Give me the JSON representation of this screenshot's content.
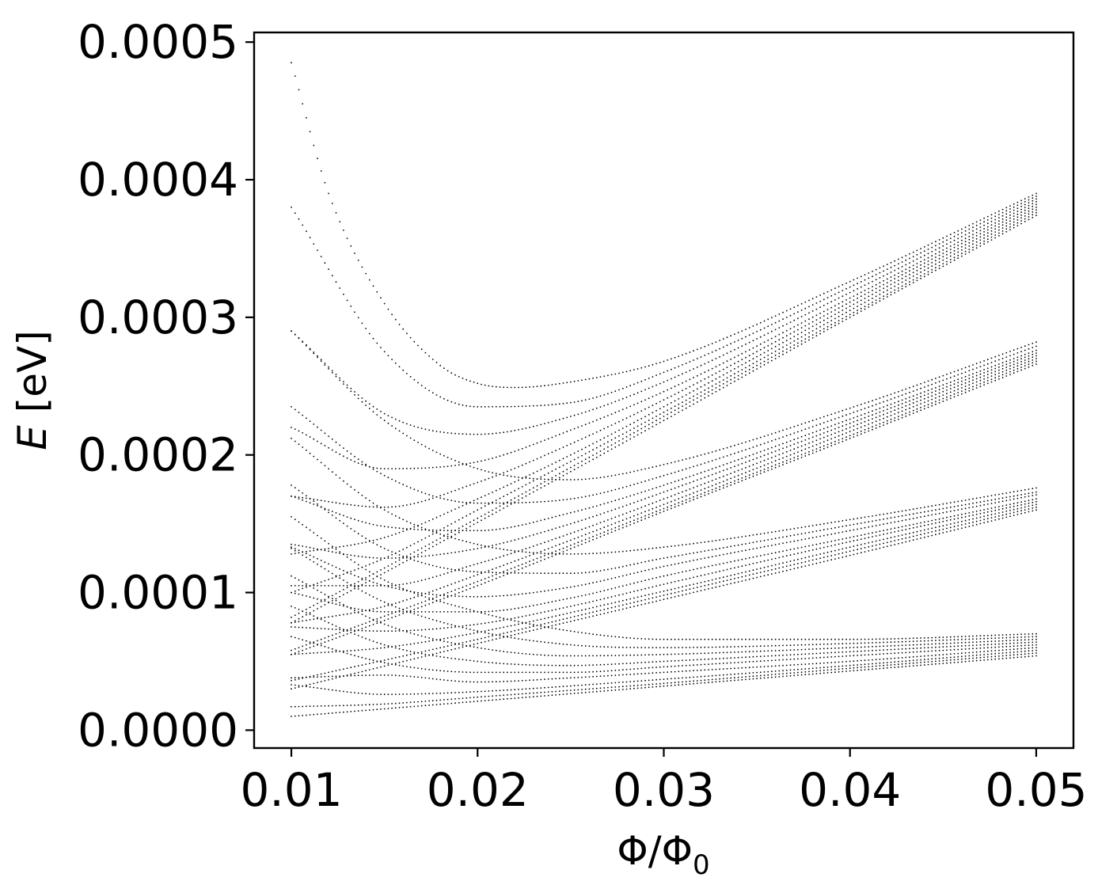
{
  "chart_data": {
    "type": "scatter",
    "marker": "dot",
    "color": "#000000",
    "grid": false,
    "legend": "none",
    "xlabel": "Φ/Φ0",
    "ylabel": "E [eV]",
    "xlim": [
      0.008,
      0.052
    ],
    "ylim": [
      -1.3e-05,
      0.000507
    ],
    "xticks": [
      0.01,
      0.02,
      0.03,
      0.04,
      0.05
    ],
    "xtick_labels": [
      "0.01",
      "0.02",
      "0.03",
      "0.04",
      "0.05"
    ],
    "yticks": [
      0.0,
      0.0001,
      0.0002,
      0.0003,
      0.0004,
      0.0005
    ],
    "ytick_labels": [
      "0.0000",
      "0.0001",
      "0.0002",
      "0.0003",
      "0.0004",
      "0.0005"
    ],
    "x_range_of_data": [
      0.01,
      0.05
    ],
    "series": [
      {
        "x": [
          0.01,
          0.02,
          0.03,
          0.04,
          0.05
        ],
        "y": [
          1e-05,
          2.1e-05,
          3.2e-05,
          4.3e-05,
          5.4e-05
        ]
      },
      {
        "x": [
          0.01,
          0.015,
          0.02,
          0.03,
          0.04,
          0.05
        ],
        "y": [
          1.7e-05,
          1.9e-05,
          2.4e-05,
          3.4e-05,
          4.5e-05,
          5.6e-05
        ]
      },
      {
        "x": [
          0.01,
          0.015,
          0.02,
          0.03,
          0.04,
          0.05
        ],
        "y": [
          3.3e-05,
          2.6e-05,
          2.8e-05,
          3.7e-05,
          4.7e-05,
          5.8e-05
        ]
      },
      {
        "x": [
          0.01,
          0.015,
          0.02,
          0.025,
          0.03,
          0.04,
          0.05
        ],
        "y": [
          3.8e-05,
          4e-05,
          3.5e-05,
          3.8e-05,
          4.2e-05,
          5e-05,
          6e-05
        ]
      },
      {
        "x": [
          0.01,
          0.015,
          0.02,
          0.025,
          0.03,
          0.04,
          0.05
        ],
        "y": [
          6.8e-05,
          4.9e-05,
          4.2e-05,
          4.2e-05,
          4.6e-05,
          5.4e-05,
          6.2e-05
        ]
      },
      {
        "x": [
          0.01,
          0.015,
          0.02,
          0.025,
          0.03,
          0.04,
          0.05
        ],
        "y": [
          9e-05,
          6.2e-05,
          5e-05,
          4.7e-05,
          5e-05,
          5.7e-05,
          6.4e-05
        ]
      },
      {
        "x": [
          0.01,
          0.015,
          0.02,
          0.025,
          0.03,
          0.04,
          0.05
        ],
        "y": [
          0.000112,
          7.7e-05,
          6e-05,
          5.4e-05,
          5.5e-05,
          6e-05,
          6.6e-05
        ]
      },
      {
        "x": [
          0.01,
          0.015,
          0.02,
          0.025,
          0.03,
          0.04,
          0.05
        ],
        "y": [
          0.000132,
          9.3e-05,
          7.2e-05,
          6.2e-05,
          6e-05,
          6.3e-05,
          6.8e-05
        ]
      },
      {
        "x": [
          0.01,
          0.015,
          0.02,
          0.025,
          0.03,
          0.04,
          0.05
        ],
        "y": [
          0.000155,
          0.000109,
          8.6e-05,
          7.2e-05,
          6.6e-05,
          6.6e-05,
          7e-05
        ]
      },
      {
        "x": [
          0.01,
          0.02,
          0.03,
          0.04,
          0.05
        ],
        "y": [
          3e-05,
          6.3e-05,
          9.5e-05,
          0.000127,
          0.00016
        ]
      },
      {
        "x": [
          0.01,
          0.02,
          0.03,
          0.04,
          0.05
        ],
        "y": [
          3.6e-05,
          6.6e-05,
          9.8e-05,
          0.00013,
          0.000162
        ]
      },
      {
        "x": [
          0.01,
          0.015,
          0.02,
          0.03,
          0.04,
          0.05
        ],
        "y": [
          5.5e-05,
          6e-05,
          7.1e-05,
          0.000101,
          0.000133,
          0.000164
        ]
      },
      {
        "x": [
          0.01,
          0.015,
          0.02,
          0.025,
          0.03,
          0.04,
          0.05
        ],
        "y": [
          7.5e-05,
          7.2e-05,
          7.7e-05,
          9e-05,
          0.000106,
          0.000137,
          0.000166
        ]
      },
      {
        "x": [
          0.01,
          0.015,
          0.02,
          0.025,
          0.03,
          0.04,
          0.05
        ],
        "y": [
          0.0001,
          8.6e-05,
          8.6e-05,
          9.6e-05,
          0.000112,
          0.00014,
          0.000168
        ]
      },
      {
        "x": [
          0.01,
          0.015,
          0.02,
          0.025,
          0.03,
          0.04,
          0.05
        ],
        "y": [
          0.000133,
          0.000105,
          9.7e-05,
          0.000104,
          0.000119,
          0.000145,
          0.000171
        ]
      },
      {
        "x": [
          0.01,
          0.015,
          0.02,
          0.025,
          0.03,
          0.04,
          0.05
        ],
        "y": [
          0.000178,
          0.000132,
          0.000115,
          0.000114,
          0.000125,
          0.000149,
          0.000173
        ]
      },
      {
        "x": [
          0.01,
          0.015,
          0.02,
          0.025,
          0.03,
          0.04,
          0.05
        ],
        "y": [
          0.000212,
          0.00016,
          0.000135,
          0.000128,
          0.000133,
          0.000153,
          0.000176
        ]
      },
      {
        "x": [
          0.01,
          0.02,
          0.03,
          0.04,
          0.05
        ],
        "y": [
          5.5e-05,
          0.000105,
          0.000159,
          0.000212,
          0.000266
        ]
      },
      {
        "x": [
          0.01,
          0.02,
          0.03,
          0.04,
          0.05
        ],
        "y": [
          5.8e-05,
          0.000108,
          0.000161,
          0.000214,
          0.000268
        ]
      },
      {
        "x": [
          0.01,
          0.015,
          0.02,
          0.03,
          0.04,
          0.05
        ],
        "y": [
          7.8e-05,
          9e-05,
          0.000113,
          0.000164,
          0.000217,
          0.00027
        ]
      },
      {
        "x": [
          0.01,
          0.015,
          0.02,
          0.025,
          0.03,
          0.04,
          0.05
        ],
        "y": [
          0.000105,
          0.000105,
          0.000121,
          0.000143,
          0.000168,
          0.00022,
          0.000272
        ]
      },
      {
        "x": [
          0.01,
          0.015,
          0.02,
          0.025,
          0.03,
          0.04,
          0.05
        ],
        "y": [
          0.000135,
          0.000125,
          0.000132,
          0.00015,
          0.000173,
          0.000223,
          0.000274
        ]
      },
      {
        "x": [
          0.01,
          0.015,
          0.02,
          0.025,
          0.03,
          0.04,
          0.05
        ],
        "y": [
          0.00017,
          0.000148,
          0.000145,
          0.000158,
          0.000178,
          0.000226,
          0.000276
        ]
      },
      {
        "x": [
          0.01,
          0.015,
          0.02,
          0.025,
          0.03,
          0.04,
          0.05
        ],
        "y": [
          0.000235,
          0.000185,
          0.000165,
          0.000168,
          0.000185,
          0.00023,
          0.000279
        ]
      },
      {
        "x": [
          0.01,
          0.015,
          0.02,
          0.025,
          0.03,
          0.04,
          0.05
        ],
        "y": [
          0.00029,
          0.000225,
          0.00019,
          0.000182,
          0.000193,
          0.000234,
          0.000282
        ]
      },
      {
        "x": [
          0.01,
          0.02,
          0.03,
          0.04,
          0.05
        ],
        "y": [
          7.8e-05,
          0.000151,
          0.000225,
          0.0003,
          0.000374
        ]
      },
      {
        "x": [
          0.01,
          0.02,
          0.03,
          0.04,
          0.05
        ],
        "y": [
          8.2e-05,
          0.000154,
          0.000228,
          0.000302,
          0.000376
        ]
      },
      {
        "x": [
          0.01,
          0.015,
          0.02,
          0.03,
          0.04,
          0.05
        ],
        "y": [
          0.0001,
          0.000125,
          0.00016,
          0.000231,
          0.000305,
          0.000378
        ]
      },
      {
        "x": [
          0.01,
          0.015,
          0.02,
          0.025,
          0.03,
          0.04,
          0.05
        ],
        "y": [
          0.000128,
          0.00014,
          0.000168,
          0.0002,
          0.000235,
          0.000308,
          0.00038
        ]
      },
      {
        "x": [
          0.01,
          0.015,
          0.02,
          0.025,
          0.03,
          0.04,
          0.05
        ],
        "y": [
          0.00017,
          0.000162,
          0.00018,
          0.000208,
          0.00024,
          0.000311,
          0.000382
        ]
      },
      {
        "x": [
          0.01,
          0.015,
          0.02,
          0.025,
          0.03,
          0.04,
          0.05
        ],
        "y": [
          0.00022,
          0.00019,
          0.000195,
          0.000218,
          0.000246,
          0.000314,
          0.000384
        ]
      },
      {
        "x": [
          0.01,
          0.015,
          0.02,
          0.025,
          0.03,
          0.04,
          0.05
        ],
        "y": [
          0.00029,
          0.00023,
          0.000215,
          0.000228,
          0.000253,
          0.000318,
          0.000386
        ]
      },
      {
        "x": [
          0.01,
          0.015,
          0.02,
          0.025,
          0.03,
          0.04,
          0.05
        ],
        "y": [
          0.00038,
          0.000275,
          0.000235,
          0.000238,
          0.00026,
          0.000322,
          0.000388
        ]
      },
      {
        "x": [
          0.01,
          0.012,
          0.015,
          0.018,
          0.02,
          0.022,
          0.025,
          0.03,
          0.04,
          0.05
        ],
        "y": [
          0.000485,
          0.00039,
          0.00031,
          0.000265,
          0.000252,
          0.000249,
          0.000253,
          0.000268,
          0.000326,
          0.00039
        ]
      }
    ]
  }
}
